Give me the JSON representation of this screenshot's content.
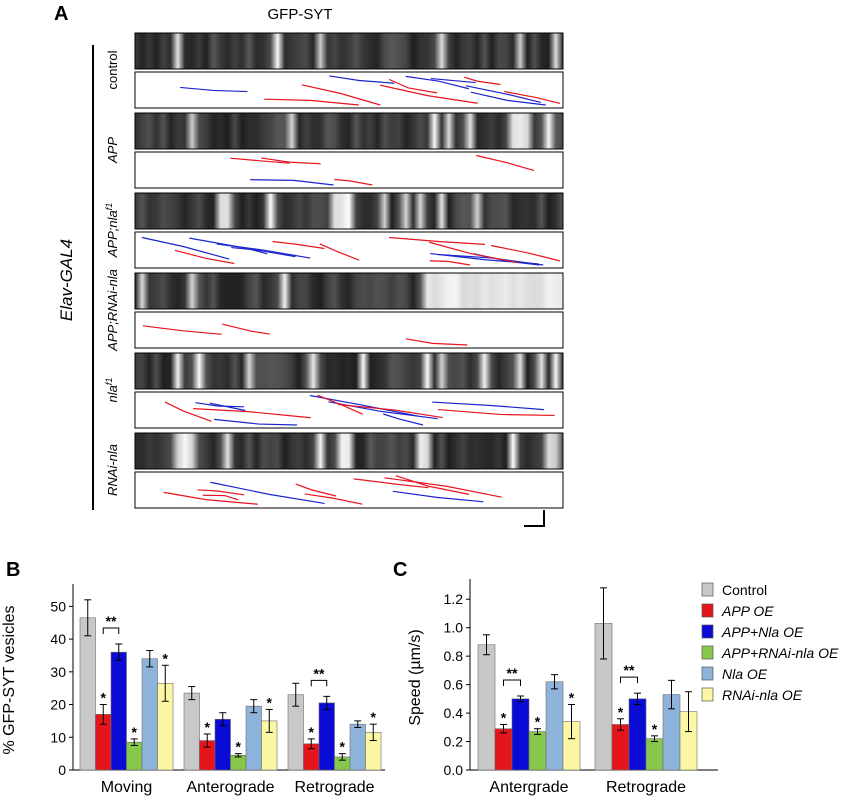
{
  "panel_a": {
    "letter": "A",
    "title": "GFP-SYT",
    "driver_label": "Elav-GAL4",
    "rows": [
      {
        "label": "control",
        "italic": false
      },
      {
        "label": "APP",
        "italic": true
      },
      {
        "label": "APP;nla",
        "sup": "f1",
        "italic": true
      },
      {
        "label": "APP;RNAi-nla",
        "italic": true
      },
      {
        "label": "nla",
        "sup": "f1",
        "italic": true
      },
      {
        "label": "RNAi-nla",
        "italic": true
      }
    ],
    "trace_colors": {
      "retrograde": "#e8141e",
      "anterograde": "#1b25cc"
    }
  },
  "colors": {
    "Control": "#c8c8c8",
    "APP OE": "#e5161b",
    "APP+Nla OE": "#0b0bd6",
    "APP+RNAi-nla OE": "#86c84b",
    "Nla OE": "#8fb4dc",
    "RNAi-nla OE": "#fbf7a4"
  },
  "legend": {
    "entries": [
      {
        "label": "Control",
        "italic": false
      },
      {
        "label": "APP OE",
        "italic": true
      },
      {
        "label": "APP+Nla OE",
        "italic": true
      },
      {
        "label": "APP+RNAi-nla OE",
        "italic": true
      },
      {
        "label": "Nla OE",
        "italic": true
      },
      {
        "label": "RNAi-nla OE",
        "italic": true
      }
    ]
  },
  "chart_data": [
    {
      "panel": "B",
      "type": "bar",
      "ylabel": "% GFP-SYT vesicles",
      "ylim": [
        0,
        55
      ],
      "yticks": [
        0,
        10,
        20,
        30,
        40,
        50
      ],
      "categories": [
        "Moving",
        "Anterograde",
        "Retrograde"
      ],
      "series": [
        {
          "name": "Control",
          "values": [
            46.5,
            23.5,
            23.0
          ],
          "errors": [
            5.5,
            2.0,
            3.5
          ]
        },
        {
          "name": "APP OE",
          "values": [
            17.0,
            9.0,
            8.0
          ],
          "errors": [
            3.0,
            2.0,
            1.5
          ]
        },
        {
          "name": "APP+Nla OE",
          "values": [
            36.0,
            15.5,
            20.5
          ],
          "errors": [
            2.5,
            2.0,
            2.0
          ]
        },
        {
          "name": "APP+RNAi-nla OE",
          "values": [
            8.5,
            4.5,
            4.0
          ],
          "errors": [
            1.0,
            0.5,
            1.0
          ]
        },
        {
          "name": "Nla OE",
          "values": [
            34.0,
            19.5,
            14.0
          ],
          "errors": [
            2.5,
            2.0,
            1.0
          ]
        },
        {
          "name": "RNAi-nla OE",
          "values": [
            26.5,
            15.0,
            11.5
          ],
          "errors": [
            5.5,
            3.5,
            2.5
          ]
        }
      ],
      "significance": {
        "single": [
          [
            1,
            3,
            5
          ],
          [
            1,
            3,
            5
          ],
          [
            1,
            3,
            5
          ]
        ],
        "single_symbol": "*",
        "brackets": [
          {
            "group": 0,
            "from": 1,
            "to": 2,
            "label": "**"
          },
          {
            "group": 2,
            "from": 1,
            "to": 2,
            "label": "**"
          }
        ]
      }
    },
    {
      "panel": "C",
      "type": "bar",
      "ylabel": "Speed (µm/s)",
      "ylim": [
        0,
        1.3
      ],
      "yticks": [
        "0.0",
        "0.2",
        "0.4",
        "0.6",
        "0.8",
        "1.0",
        "1.2"
      ],
      "categories": [
        "Antergrade",
        "Retrograde"
      ],
      "series": [
        {
          "name": "Control",
          "values": [
            0.88,
            1.03
          ],
          "errors": [
            0.07,
            0.25
          ]
        },
        {
          "name": "APP OE",
          "values": [
            0.29,
            0.32
          ],
          "errors": [
            0.03,
            0.04
          ]
        },
        {
          "name": "APP+Nla OE",
          "values": [
            0.5,
            0.5
          ],
          "errors": [
            0.02,
            0.04
          ]
        },
        {
          "name": "APP+RNAi-nla OE",
          "values": [
            0.27,
            0.22
          ],
          "errors": [
            0.02,
            0.02
          ]
        },
        {
          "name": "Nla OE",
          "values": [
            0.62,
            0.53
          ],
          "errors": [
            0.05,
            0.1
          ]
        },
        {
          "name": "RNAi-nla OE",
          "values": [
            0.34,
            0.41
          ],
          "errors": [
            0.12,
            0.14
          ]
        }
      ],
      "significance": {
        "single": [
          [
            1,
            3,
            5
          ],
          [
            1,
            3
          ]
        ],
        "single_symbol": "*",
        "brackets": [
          {
            "group": 0,
            "from": 1,
            "to": 2,
            "label": "**"
          },
          {
            "group": 1,
            "from": 1,
            "to": 2,
            "label": "**"
          }
        ]
      }
    }
  ]
}
